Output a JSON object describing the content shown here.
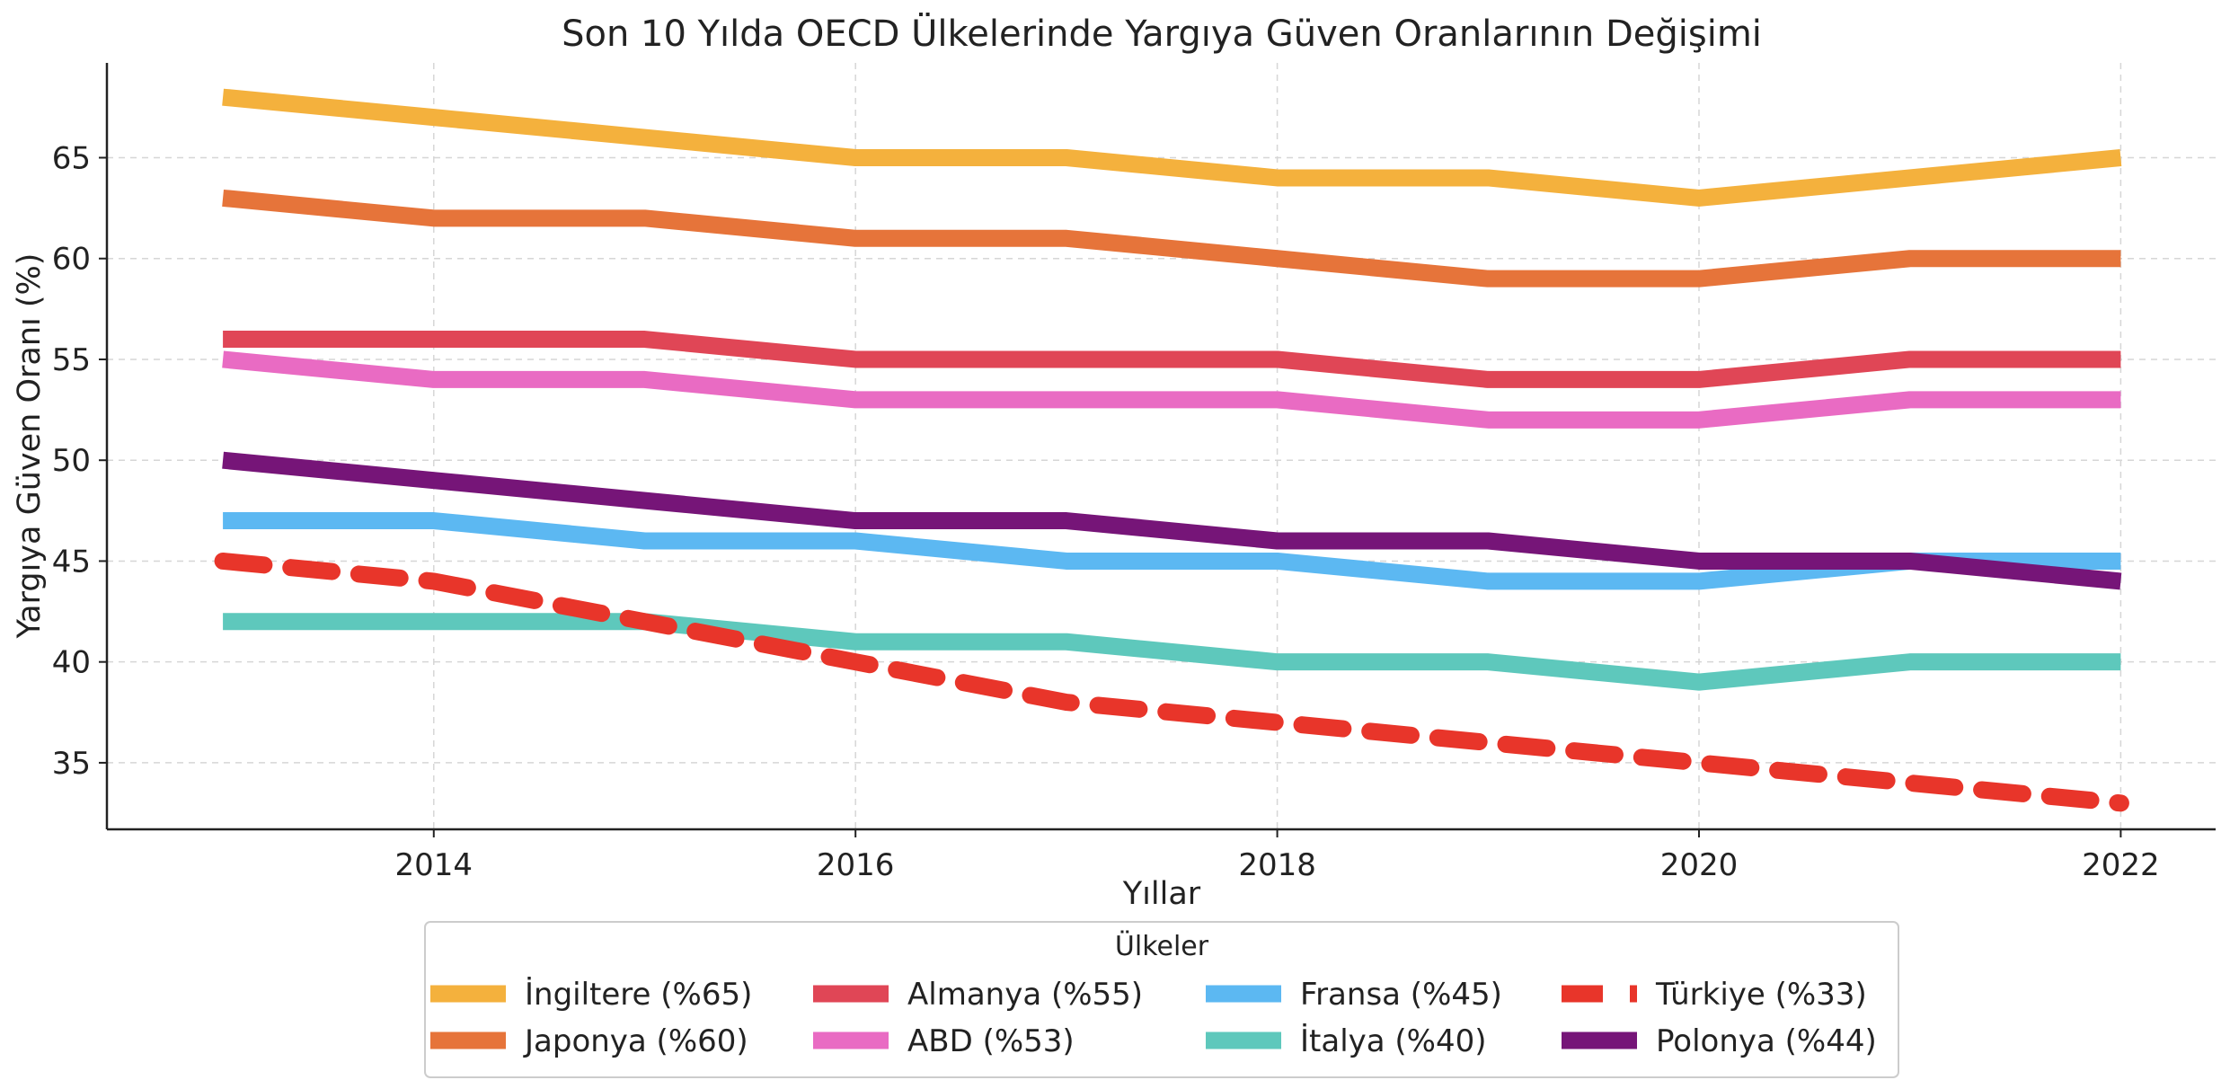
{
  "chart_data": {
    "type": "line",
    "title": "Son 10 Yılda OECD Ülkelerinde Yargıya Güven Oranlarının Değişimi",
    "xlabel": "Yıllar",
    "ylabel": "Yargıya Güven Oranı (%)",
    "x": [
      2013,
      2014,
      2015,
      2016,
      2017,
      2018,
      2019,
      2020,
      2021,
      2022
    ],
    "xlim": [
      2012.45,
      2022.45
    ],
    "ylim": [
      31.7,
      69.7
    ],
    "xticks": [
      2014,
      2016,
      2018,
      2020,
      2022
    ],
    "yticks": [
      35,
      40,
      45,
      50,
      55,
      60,
      65
    ],
    "grid": true,
    "legend": {
      "title": "Ülkeler",
      "placement": "bottom-center",
      "columns": 4
    },
    "series": [
      {
        "name": "İngiltere (%65)",
        "color": "#F4B13D",
        "dashed": false,
        "values": [
          68,
          67,
          66,
          65,
          65,
          64,
          64,
          63,
          64,
          65
        ]
      },
      {
        "name": "Japonya (%60)",
        "color": "#E6743A",
        "dashed": false,
        "values": [
          63,
          62,
          62,
          61,
          61,
          60,
          59,
          59,
          60,
          60
        ]
      },
      {
        "name": "Almanya (%55)",
        "color": "#E04656",
        "dashed": false,
        "values": [
          56,
          56,
          56,
          55,
          55,
          55,
          54,
          54,
          55,
          55
        ]
      },
      {
        "name": "ABD (%53)",
        "color": "#E96BC3",
        "dashed": false,
        "values": [
          55,
          54,
          54,
          53,
          53,
          53,
          52,
          52,
          53,
          53
        ]
      },
      {
        "name": "Fransa (%45)",
        "color": "#5CB8F2",
        "dashed": false,
        "values": [
          47,
          47,
          46,
          46,
          45,
          45,
          44,
          44,
          45,
          45
        ]
      },
      {
        "name": "İtalya (%40)",
        "color": "#5EC8BC",
        "dashed": false,
        "values": [
          42,
          42,
          42,
          41,
          41,
          40,
          40,
          39,
          40,
          40
        ]
      },
      {
        "name": "Türkiye (%33)",
        "color": "#E8352A",
        "dashed": true,
        "values": [
          45,
          44,
          42,
          40,
          38,
          37,
          36,
          35,
          34,
          33
        ]
      },
      {
        "name": "Polonya (%44)",
        "color": "#761578",
        "dashed": false,
        "values": [
          50,
          49,
          48,
          47,
          47,
          46,
          46,
          45,
          45,
          44
        ]
      }
    ]
  }
}
